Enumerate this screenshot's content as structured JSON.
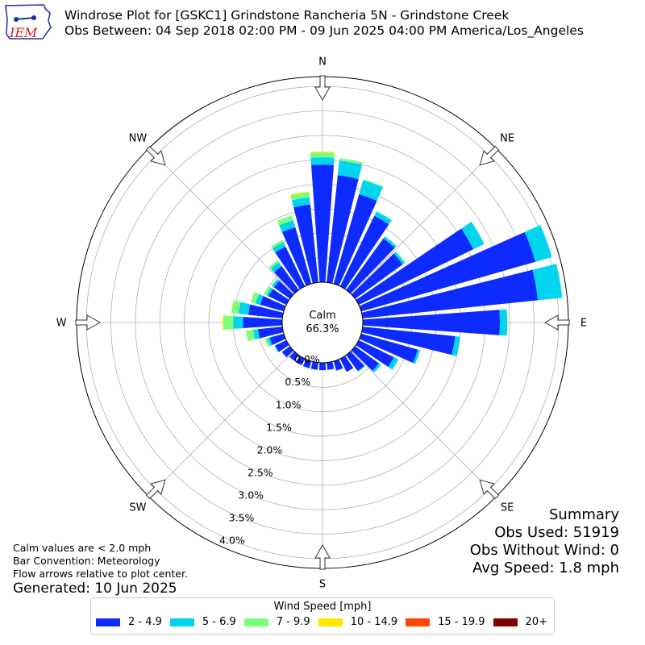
{
  "logo": {
    "text": "IEM",
    "colors": {
      "text": "#d01c24",
      "map": "#1a2f9e"
    }
  },
  "header": {
    "title": "Windrose Plot for [GSKC1] Grindstone Rancheria 5N - Grindstone Creek",
    "subtitle": "Obs Between: 04 Sep 2018 02:00 PM - 09 Jun 2025 04:00 PM America/Los_Angeles"
  },
  "notes": {
    "line1": "Calm values are < 2.0 mph",
    "line2": "Bar Convention: Meteorology",
    "line3": "Flow arrows relative to plot center.",
    "generated": "Generated: 10 Jun 2025"
  },
  "summary": {
    "title": "Summary",
    "obs_used": "Obs Used: 51919",
    "obs_without_wind": "Obs Without Wind: 0",
    "avg_speed": "Avg Speed: 1.8 mph"
  },
  "chart_data": {
    "type": "windrose",
    "calm_label": "Calm",
    "calm_value": "66.3%",
    "direction_labels": [
      "N",
      "NE",
      "E",
      "SE",
      "S",
      "SW",
      "W",
      "NW"
    ],
    "radial_tick_labels": [
      "0.0%",
      "0.5%",
      "1.0%",
      "1.5%",
      "2.0%",
      "2.5%",
      "3.0%",
      "3.5%",
      "4.0%"
    ],
    "rmax": 4.2,
    "grid": true,
    "legend": {
      "title": "Wind Speed [mph]",
      "placement": "bottom-center",
      "entries": [
        {
          "label": "2 - 4.9",
          "color": "#0d2bff"
        },
        {
          "label": "5 - 6.9",
          "color": "#00d4ee"
        },
        {
          "label": "7 - 9.9",
          "color": "#7bff7b"
        },
        {
          "label": "10 - 14.9",
          "color": "#ffe800"
        },
        {
          "label": "15 - 19.9",
          "color": "#ff4600"
        },
        {
          "label": "20+",
          "color": "#800000"
        }
      ]
    },
    "direction_bins": [
      0,
      10,
      20,
      30,
      40,
      50,
      60,
      70,
      80,
      90,
      100,
      110,
      120,
      130,
      140,
      150,
      160,
      170,
      180,
      190,
      200,
      210,
      220,
      230,
      240,
      250,
      260,
      270,
      280,
      290,
      300,
      310,
      320,
      330,
      340,
      350
    ],
    "series": [
      {
        "name": "2 - 4.9",
        "values": [
          2.4,
          2.2,
          1.9,
          1.6,
          1.3,
          1.2,
          2.6,
          3.7,
          3.6,
          2.8,
          1.9,
          1.2,
          0.8,
          0.6,
          0.4,
          0.3,
          0.2,
          0.15,
          0.15,
          0.15,
          0.15,
          0.15,
          0.15,
          0.2,
          0.25,
          0.3,
          0.5,
          0.8,
          0.7,
          0.5,
          0.4,
          0.4,
          0.6,
          0.9,
          1.2,
          1.6
        ]
      },
      {
        "name": "5 - 6.9",
        "values": [
          0.15,
          0.3,
          0.3,
          0.1,
          0.05,
          0.05,
          0.25,
          0.35,
          0.5,
          0.15,
          0.1,
          0.05,
          0.1,
          0.05,
          0.02,
          0.0,
          0.0,
          0.0,
          0.0,
          0.0,
          0.0,
          0.0,
          0.0,
          0.0,
          0.02,
          0.05,
          0.1,
          0.2,
          0.2,
          0.1,
          0.05,
          0.05,
          0.1,
          0.1,
          0.15,
          0.15
        ]
      },
      {
        "name": "7 - 9.9",
        "values": [
          0.1,
          0.05,
          0.02,
          0.0,
          0.0,
          0.02,
          0.0,
          0.0,
          0.0,
          0.0,
          0.0,
          0.0,
          0.0,
          0.0,
          0.0,
          0.0,
          0.0,
          0.0,
          0.0,
          0.0,
          0.0,
          0.0,
          0.0,
          0.0,
          0.0,
          0.05,
          0.15,
          0.2,
          0.15,
          0.1,
          0.05,
          0.02,
          0.05,
          0.05,
          0.1,
          0.1
        ]
      },
      {
        "name": "10 - 14.9",
        "values": [
          0.02,
          0.0,
          0.0,
          0.0,
          0.0,
          0.0,
          0.0,
          0.0,
          0.0,
          0.0,
          0.0,
          0.0,
          0.0,
          0.0,
          0.0,
          0.0,
          0.0,
          0.0,
          0.0,
          0.0,
          0.0,
          0.0,
          0.0,
          0.0,
          0.0,
          0.0,
          0.0,
          0.02,
          0.0,
          0.0,
          0.0,
          0.0,
          0.0,
          0.0,
          0.0,
          0.02
        ]
      },
      {
        "name": "15 - 19.9",
        "values": [
          0,
          0,
          0,
          0,
          0,
          0,
          0,
          0,
          0,
          0,
          0,
          0,
          0,
          0,
          0,
          0,
          0,
          0,
          0,
          0,
          0,
          0,
          0,
          0,
          0,
          0,
          0,
          0,
          0,
          0,
          0,
          0,
          0,
          0,
          0,
          0
        ]
      },
      {
        "name": "20+",
        "values": [
          0,
          0,
          0,
          0,
          0,
          0,
          0,
          0,
          0,
          0,
          0,
          0,
          0,
          0,
          0,
          0,
          0,
          0,
          0,
          0,
          0,
          0,
          0,
          0,
          0,
          0,
          0,
          0,
          0,
          0,
          0,
          0,
          0,
          0,
          0,
          0
        ]
      }
    ]
  }
}
